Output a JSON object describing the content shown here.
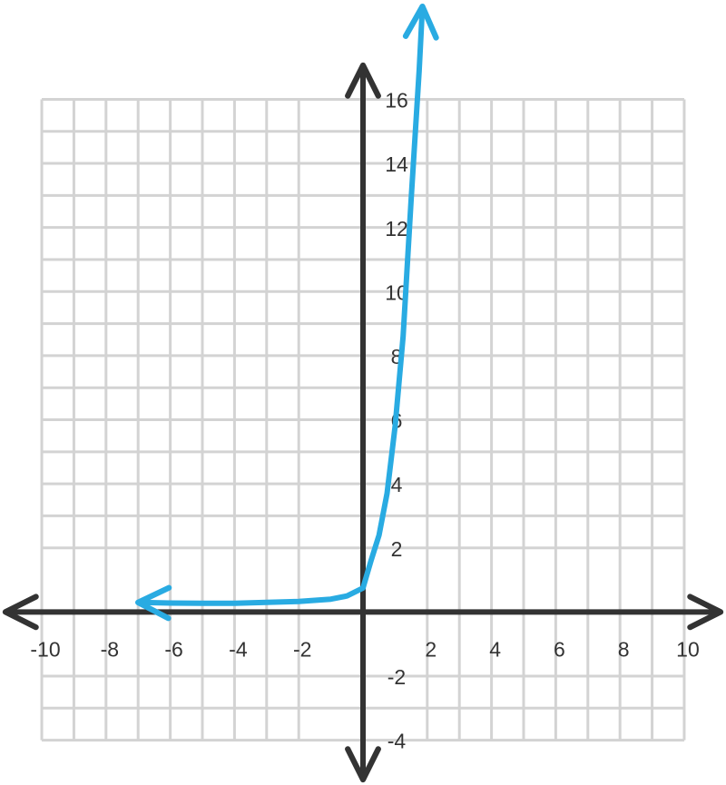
{
  "chart_data": {
    "type": "line",
    "xlim": [
      -11.3,
      11.3
    ],
    "ylim": [
      -5.4,
      19.1
    ],
    "xticks": [
      -10,
      -8,
      -6,
      -4,
      -2,
      2,
      4,
      6,
      8,
      10
    ],
    "yticks": [
      -4,
      -2,
      2,
      4,
      6,
      8,
      10,
      12,
      14,
      16
    ],
    "grid": true,
    "series": [
      {
        "color": "#29abe2",
        "x": [
          -7,
          -6,
          -5,
          -4,
          -3,
          -2,
          -1,
          -0.5,
          0,
          0.25,
          0.5,
          0.75,
          1,
          1.25,
          1.5,
          1.75,
          1.85
        ],
        "values": [
          0.3,
          0.28,
          0.27,
          0.27,
          0.3,
          0.33,
          0.4,
          0.5,
          0.75,
          1.6,
          2.4,
          3.7,
          5.8,
          8.6,
          12.9,
          16.9,
          18.9
        ]
      }
    ]
  }
}
